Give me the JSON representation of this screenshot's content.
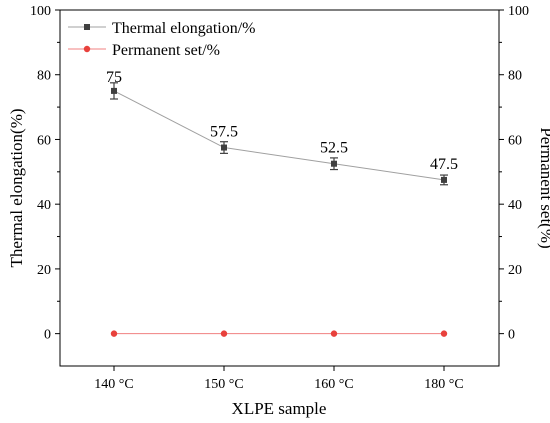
{
  "chart_data": {
    "type": "line",
    "categories": [
      "140 °C",
      "150 °C",
      "160 °C",
      "180 °C"
    ],
    "series": [
      {
        "name": "Thermal elongation/%",
        "axis": "left",
        "values": [
          75,
          57.5,
          52.5,
          47.5
        ],
        "error": [
          2.5,
          1.8,
          1.8,
          1.5
        ],
        "data_labels": [
          "75",
          "57.5",
          "52.5",
          "47.5"
        ],
        "color": "#404040",
        "line_color": "#a0a0a0",
        "marker": "square"
      },
      {
        "name": "Permanent set/%",
        "axis": "right",
        "values": [
          0,
          0,
          0,
          0
        ],
        "color": "#e8413c",
        "line_color": "#f08080",
        "marker": "circle"
      }
    ],
    "xlabel": "XLPE sample",
    "ylabel_left": "Thermal elongation(%)",
    "ylabel_right": "Permanent set(%)",
    "ylim": [
      -10,
      100
    ],
    "yticks": [
      "0",
      "20",
      "40",
      "60",
      "80",
      "100"
    ],
    "legend_position": "top-left",
    "grid": false
  }
}
